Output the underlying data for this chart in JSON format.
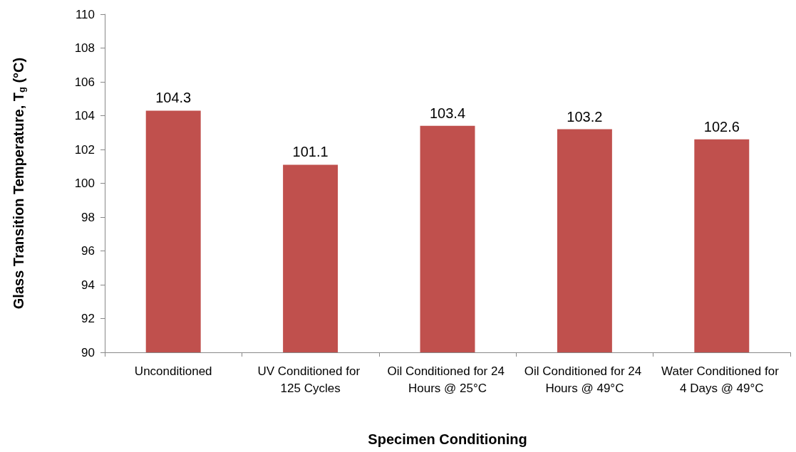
{
  "chart_data": {
    "type": "bar",
    "xlabel": "Specimen Conditioning",
    "ylabel": "Glass Transition Temperature, T$_{g}$ (°C)",
    "categories": [
      "Unconditioned",
      "UV Conditioned for 125 Cycles",
      "Oil Conditioned for 24 Hours @ 25°C",
      "Oil Conditioned for 24 Hours @ 49°C",
      "Water Conditioned for 4 Days @ 49°C"
    ],
    "values": [
      104.3,
      101.1,
      103.4,
      103.2,
      102.6
    ],
    "color": "#c0504d",
    "ylim": [
      90,
      110
    ],
    "yticks": [
      90,
      92,
      94,
      96,
      98,
      100,
      102,
      104,
      106,
      108,
      110
    ],
    "grid": false,
    "data_labels": true
  }
}
